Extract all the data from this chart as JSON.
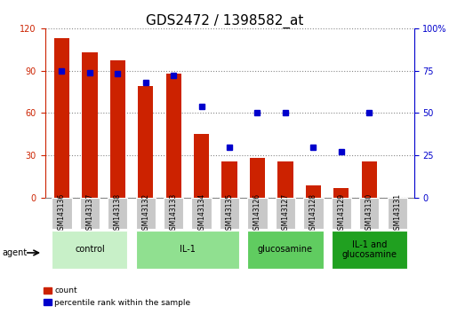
{
  "title": "GDS2472 / 1398582_at",
  "categories": [
    "GSM143136",
    "GSM143137",
    "GSM143138",
    "GSM143132",
    "GSM143133",
    "GSM143134",
    "GSM143135",
    "GSM143126",
    "GSM143127",
    "GSM143128",
    "GSM143129",
    "GSM143130",
    "GSM143131"
  ],
  "bar_values": [
    113,
    103,
    97,
    79,
    88,
    45,
    26,
    28,
    26,
    9,
    7,
    26,
    0
  ],
  "blue_values": [
    75,
    74,
    73,
    68,
    72,
    54,
    30,
    50,
    50,
    30,
    27,
    50,
    null
  ],
  "bar_color": "#cc2200",
  "blue_color": "#0000cc",
  "ylim_left": [
    0,
    120
  ],
  "ylim_right": [
    0,
    100
  ],
  "yticks_left": [
    0,
    30,
    60,
    90,
    120
  ],
  "yticks_right": [
    0,
    25,
    50,
    75,
    100
  ],
  "groups": [
    {
      "label": "control",
      "start": 0,
      "end": 3,
      "color": "#c8f0c8"
    },
    {
      "label": "IL-1",
      "start": 3,
      "end": 7,
      "color": "#90e090"
    },
    {
      "label": "glucosamine",
      "start": 7,
      "end": 10,
      "color": "#60cc60"
    },
    {
      "label": "IL-1 and\nglucosamine",
      "start": 10,
      "end": 13,
      "color": "#20a020"
    }
  ],
  "agent_label": "agent",
  "legend_count_label": "count",
  "legend_percentile_label": "percentile rank within the sample",
  "bg_color": "#ffffff",
  "tick_area_color": "#c8c8c8",
  "title_fontsize": 11,
  "tick_fontsize": 7
}
